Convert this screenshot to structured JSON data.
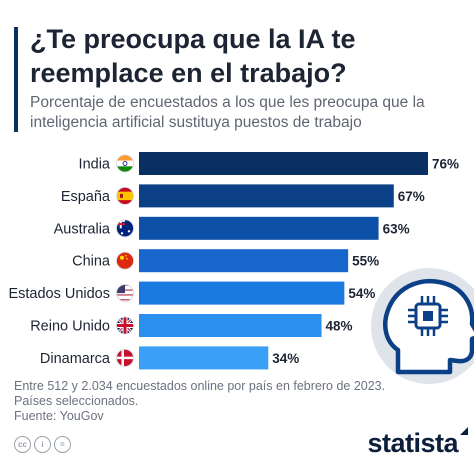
{
  "title": "¿Te preocupa que la IA te reemplace en el trabajo?",
  "subtitle": "Porcentaje de encuestados a los que les preocupa que la inteligencia artificial sustituya puestos de trabajo",
  "chart_data": {
    "type": "bar",
    "orientation": "horizontal",
    "categories": [
      "India",
      "España",
      "Australia",
      "China",
      "Estados Unidos",
      "Reino Unido",
      "Dinamarca"
    ],
    "values": [
      76,
      67,
      63,
      55,
      54,
      48,
      34
    ],
    "value_labels": [
      "76%",
      "67%",
      "63%",
      "55%",
      "54%",
      "48%",
      "34%"
    ],
    "unit": "%",
    "xlim": [
      0,
      100
    ],
    "grid": false,
    "legend": "none",
    "bar_colors": [
      "#0a2f63",
      "#0b3f86",
      "#0d50a8",
      "#1666cc",
      "#1a7ae0",
      "#2b8ff0",
      "#3a9ff7"
    ]
  },
  "flags": {
    "India": "india-flag-icon",
    "España": "spain-flag-icon",
    "Australia": "australia-flag-icon",
    "China": "china-flag-icon",
    "Estados Unidos": "usa-flag-icon",
    "Reino Unido": "uk-flag-icon",
    "Dinamarca": "denmark-flag-icon"
  },
  "illustration": "ai-head-chip-icon",
  "footnote": {
    "line1": "Entre 512 y 2.034 encuestados online por país en febrero de 2023.",
    "line2": "Países seleccionados.",
    "source": "Fuente: YouGov"
  },
  "license_icons": [
    "cc",
    "i",
    "="
  ],
  "brand": "statista"
}
